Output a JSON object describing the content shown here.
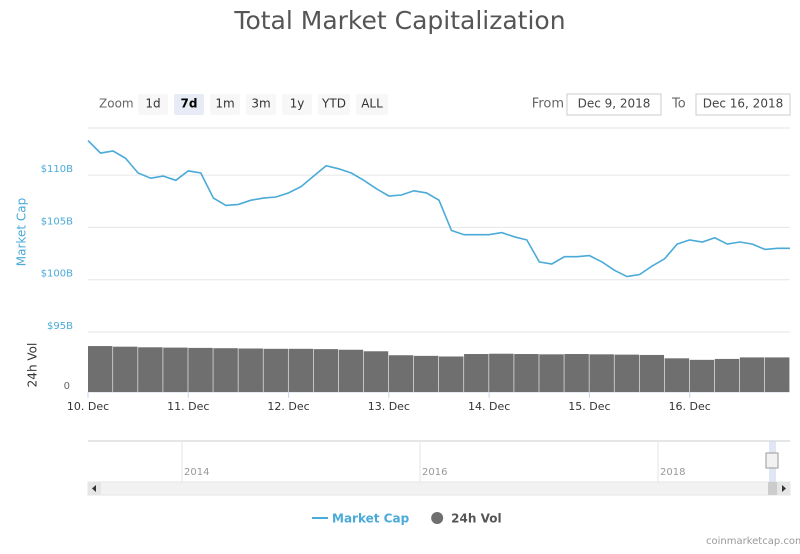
{
  "chart_data": {
    "type": "stock",
    "title": "Total Market Capitalization",
    "range_selector": {
      "zoom_label": "Zoom",
      "buttons": [
        "1d",
        "7d",
        "1m",
        "3m",
        "1y",
        "YTD",
        "ALL"
      ],
      "selected": "7d",
      "from_label": "From",
      "from": "Dec 9, 2018",
      "to_label": "To",
      "to": "Dec 16, 2018"
    },
    "x": [
      0,
      0.125,
      0.25,
      0.375,
      0.5,
      0.625,
      0.75,
      0.875,
      1,
      1.125,
      1.25,
      1.375,
      1.5,
      1.625,
      1.75,
      1.875,
      2,
      2.125,
      2.25,
      2.375,
      2.5,
      2.625,
      2.75,
      2.875,
      3,
      3.125,
      3.25,
      3.375,
      3.5,
      3.625,
      3.75,
      3.875,
      4,
      4.125,
      4.25,
      4.375,
      4.5,
      4.625,
      4.75,
      4.875,
      5,
      5.125,
      5.25,
      5.375,
      5.5,
      5.625,
      5.75,
      5.875,
      6,
      6.125,
      6.25,
      6.375,
      6.5,
      6.625,
      6.75,
      6.875,
      7
    ],
    "xlim": [
      0,
      7
    ],
    "xticks": [
      {
        "value": 0,
        "label": "10. Dec"
      },
      {
        "value": 1,
        "label": "11. Dec"
      },
      {
        "value": 2,
        "label": "12. Dec"
      },
      {
        "value": 3,
        "label": "13. Dec"
      },
      {
        "value": 4,
        "label": "14. Dec"
      },
      {
        "value": 5,
        "label": "15. Dec"
      },
      {
        "value": 6,
        "label": "16. Dec"
      }
    ],
    "ylabel": "Market Cap",
    "ylim": [
      95,
      114.5
    ],
    "yticks": [
      {
        "value": 95,
        "label": "$95B"
      },
      {
        "value": 100,
        "label": "$100B"
      },
      {
        "value": 105,
        "label": "$105B"
      },
      {
        "value": 110,
        "label": "$110B"
      }
    ],
    "y2label": "24h Vol",
    "y2lim": [
      0,
      16
    ],
    "y2ticks": [
      0
    ],
    "grid": true,
    "series": [
      {
        "name": "Market Cap",
        "color": "#4aaad8",
        "values": [
          113.3,
          112.1,
          112.3,
          111.6,
          110.2,
          109.7,
          109.9,
          109.5,
          110.4,
          110.2,
          107.8,
          107.1,
          107.2,
          107.6,
          107.8,
          107.9,
          108.3,
          108.9,
          109.9,
          110.9,
          110.6,
          110.2,
          109.5,
          108.7,
          108.0,
          108.1,
          108.5,
          108.3,
          107.6,
          104.7,
          104.3,
          104.3,
          104.3,
          104.5,
          104.1,
          103.8,
          101.7,
          101.5,
          102.2,
          102.2,
          102.3,
          101.7,
          100.9,
          100.3,
          100.5,
          101.3,
          102.0,
          103.4,
          103.8,
          103.6,
          104.0,
          103.4,
          103.6,
          103.4,
          102.9,
          103.0,
          103.0
        ]
      },
      {
        "name": "24h Vol",
        "color": "#6f6f6f",
        "axis": "y2",
        "x": [
          0,
          0.25,
          0.5,
          0.75,
          1,
          1.25,
          1.5,
          1.75,
          2,
          2.25,
          2.5,
          2.75,
          3,
          3.25,
          3.5,
          3.75,
          4,
          4.25,
          4.5,
          4.75,
          5,
          5.25,
          5.5,
          5.75,
          6,
          6.25,
          6.5,
          6.75
        ],
        "values": [
          15.0,
          14.8,
          14.6,
          14.5,
          14.4,
          14.3,
          14.2,
          14.1,
          14.1,
          14.0,
          13.8,
          13.3,
          12.0,
          11.8,
          11.6,
          12.4,
          12.5,
          12.4,
          12.3,
          12.4,
          12.3,
          12.2,
          12.1,
          11.0,
          10.5,
          10.8,
          11.3,
          11.3
        ]
      }
    ],
    "navigator": {
      "labels": [
        "2014",
        "2016",
        "2018"
      ]
    },
    "credit": "coinmarketcap.com"
  }
}
